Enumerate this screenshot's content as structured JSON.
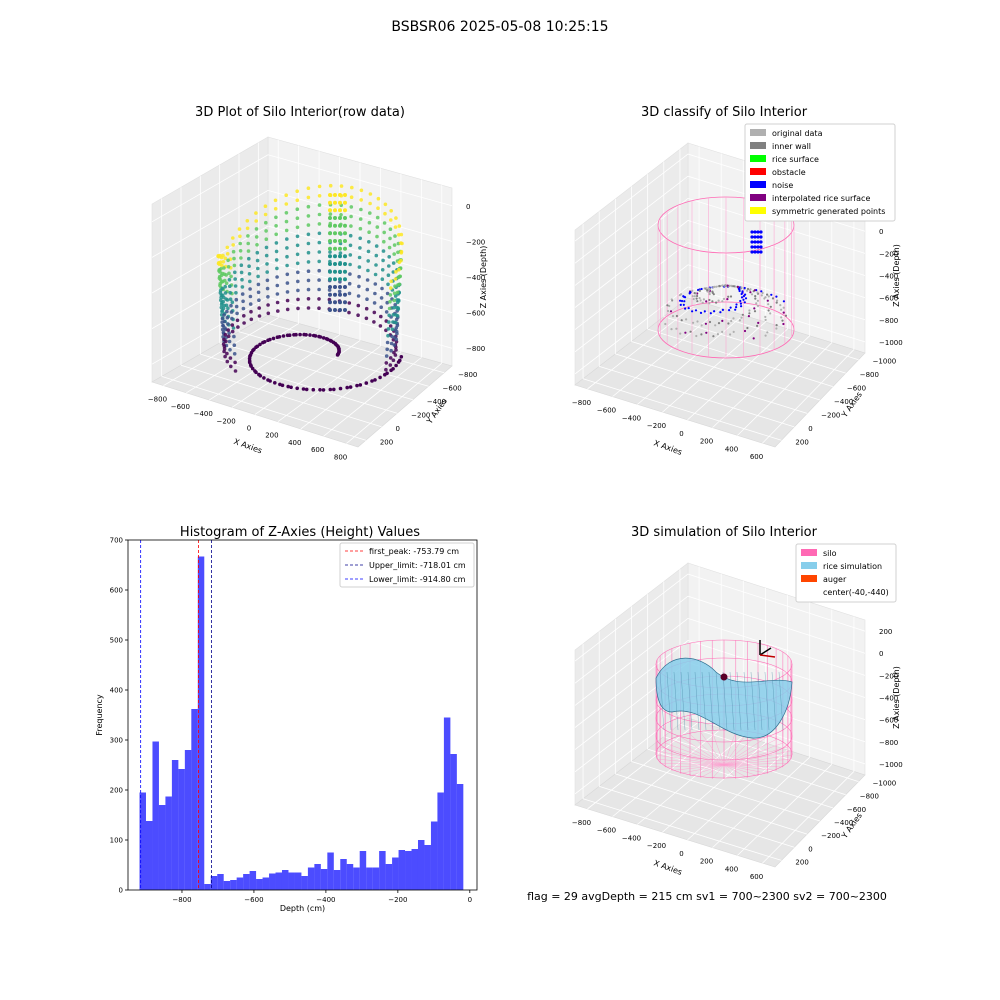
{
  "suptitle": "BSBSR06 2025-05-08 10:25:15",
  "footer": "flag = 29  avgDepth = 215 cm  sv1 = 700~2300  sv2 = 700~2300",
  "chart_data": [
    {
      "type": "scatter3d",
      "title": "3D Plot of Silo Interior(row data)",
      "xlabel": "X Axies",
      "ylabel": "Y Axies",
      "zlabel": "Z Axies (Depth)",
      "xticks": [
        "−800",
        "−600",
        "−400",
        "−200",
        "0",
        "200",
        "400",
        "600",
        "800"
      ],
      "yticks": [
        "200",
        "0",
        "−200",
        "−400",
        "−600",
        "−800"
      ],
      "zticks": [
        "0",
        "−200",
        "−400",
        "−600",
        "−800"
      ],
      "colormap": [
        "#440154",
        "#3b528b",
        "#21918c",
        "#5ec962",
        "#fde725"
      ]
    },
    {
      "type": "scatter3d",
      "title": "3D classify of Silo Interior",
      "xlabel": "X Axies",
      "ylabel": "Y Axies",
      "zlabel": "Z Axies (Depth)",
      "xticks": [
        "−800",
        "−600",
        "−400",
        "−200",
        "0",
        "200",
        "400",
        "600"
      ],
      "yticks": [
        "200",
        "0",
        "−200",
        "−400",
        "−600",
        "−800",
        "−1000"
      ],
      "zticks": [
        "200",
        "0",
        "−200",
        "−400",
        "−600",
        "−800",
        "−1000"
      ],
      "legend": [
        {
          "label": "original data",
          "color": "#b0b0b0"
        },
        {
          "label": "inner wall",
          "color": "#808080"
        },
        {
          "label": "rice surface",
          "color": "#00ff00"
        },
        {
          "label": "obstacle",
          "color": "#ff0000"
        },
        {
          "label": "noise",
          "color": "#0000ff"
        },
        {
          "label": "interpolated rice surface",
          "color": "#800080"
        },
        {
          "label": "symmetric generated points",
          "color": "#ffff00"
        }
      ],
      "legend_position": "top-right"
    },
    {
      "type": "bar",
      "title": "Histogram of Z-Axies (Height) Values",
      "xlabel": "Depth (cm)",
      "ylabel": "Frequency",
      "xlim": [
        -950,
        20
      ],
      "ylim": [
        0,
        700
      ],
      "xticks": [
        {
          "v": -800,
          "label": "−800"
        },
        {
          "v": -600,
          "label": "−600"
        },
        {
          "v": -400,
          "label": "−400"
        },
        {
          "v": -200,
          "label": "−200"
        },
        {
          "v": 0,
          "label": "0"
        }
      ],
      "yticks": [
        0,
        100,
        200,
        300,
        400,
        500,
        600,
        700
      ],
      "bar_color": "#0000ff",
      "bin_start": -918,
      "bin_width": 18,
      "values": [
        195,
        138,
        297,
        170,
        187,
        260,
        242,
        280,
        362,
        667,
        12,
        28,
        32,
        18,
        20,
        25,
        32,
        38,
        22,
        25,
        33,
        35,
        40,
        35,
        35,
        28,
        45,
        52,
        42,
        75,
        40,
        62,
        52,
        45,
        78,
        45,
        45,
        78,
        52,
        65,
        80,
        78,
        82,
        100,
        90,
        137,
        195,
        345,
        272,
        212
      ],
      "lines": [
        {
          "label": "first_peak: -753.79 cm",
          "value": -753.79,
          "color": "#ff0000"
        },
        {
          "label": "Upper_limit: -718.01 cm",
          "value": -718.01,
          "color": "#00008b"
        },
        {
          "label": "Lower_limit: -914.80 cm",
          "value": -914.8,
          "color": "#0000ff"
        }
      ],
      "legend_position": "top-right"
    },
    {
      "type": "surface3d",
      "title": "3D simulation of Silo Interior",
      "xlabel": "X Axies",
      "ylabel": "Y Axies",
      "zlabel": "Z Axies (Depth)",
      "xticks": [
        "−800",
        "−600",
        "−400",
        "−200",
        "0",
        "200",
        "400",
        "600"
      ],
      "yticks": [
        "200",
        "0",
        "−200",
        "−400",
        "−600",
        "−800",
        "−1000"
      ],
      "zticks": [
        "200",
        "0",
        "−200",
        "−400",
        "−600",
        "−800",
        "−1000"
      ],
      "legend": [
        {
          "label": "silo",
          "color": "#ff69b4"
        },
        {
          "label": "rice simulation",
          "color": "#87ceeb"
        },
        {
          "label": "auger",
          "color": "#ff4500"
        },
        {
          "label": "center(-40,-440)",
          "color": ""
        }
      ],
      "legend_position": "top-right"
    }
  ]
}
